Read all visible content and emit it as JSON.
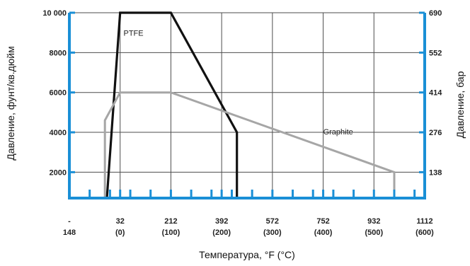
{
  "chart_data": {
    "type": "line",
    "xlabel": "Температура, °F (°C)",
    "ylabel_left": "Давление, фунт/кв.дюйм",
    "ylabel_right": "Давление, бар",
    "x_unit": "°F",
    "xlim": [
      -148,
      1112
    ],
    "ylim": [
      700,
      10000
    ],
    "x_ticks": [
      {
        "value": -148,
        "line1": "-",
        "line2": "148"
      },
      {
        "value": 32,
        "line1": "32",
        "line2": "(0)"
      },
      {
        "value": 212,
        "line1": "212",
        "line2": "(100)"
      },
      {
        "value": 392,
        "line1": "392",
        "line2": "(200)"
      },
      {
        "value": 572,
        "line1": "572",
        "line2": "(300)"
      },
      {
        "value": 752,
        "line1": "752",
        "line2": "(400)"
      },
      {
        "value": 932,
        "line1": "932",
        "line2": "(500)"
      },
      {
        "value": 1112,
        "line1": "1112",
        "line2": "(600)"
      }
    ],
    "x_minor_ticks": [
      -76,
      -4,
      68,
      140,
      284,
      356,
      428,
      500,
      644,
      716,
      788,
      860,
      1004,
      1076
    ],
    "y_ticks_left": [
      {
        "value": 2000,
        "label": "2000"
      },
      {
        "value": 4000,
        "label": "4000"
      },
      {
        "value": 6000,
        "label": "6000"
      },
      {
        "value": 8000,
        "label": "8000"
      },
      {
        "value": 10000,
        "label": "10 000"
      }
    ],
    "y_ticks_right": [
      {
        "value": 2000,
        "label": "138"
      },
      {
        "value": 4000,
        "label": "276"
      },
      {
        "value": 6000,
        "label": "414"
      },
      {
        "value": 8000,
        "label": "552"
      },
      {
        "value": 10000,
        "label": "690"
      }
    ],
    "grid": true,
    "series": [
      {
        "name": "PTFE",
        "color": "#111111",
        "points": [
          [
            -15,
            700
          ],
          [
            32,
            10000
          ],
          [
            212,
            10000
          ],
          [
            446,
            4000
          ],
          [
            446,
            700
          ]
        ]
      },
      {
        "name": "Graphite",
        "color": "#a6a6a6",
        "points": [
          [
            -22,
            700
          ],
          [
            -22,
            4600
          ],
          [
            32,
            6000
          ],
          [
            212,
            6000
          ],
          [
            1004,
            2000
          ],
          [
            1004,
            700
          ]
        ]
      }
    ],
    "series_labels": [
      {
        "series": 0,
        "text": "PTFE",
        "x": 44,
        "y": 8850
      },
      {
        "series": 1,
        "text": "Graphite",
        "x": 752,
        "y": 3900
      }
    ],
    "colors": {
      "axis": "#1a8fd6",
      "grid": "#4d4d4d"
    }
  }
}
